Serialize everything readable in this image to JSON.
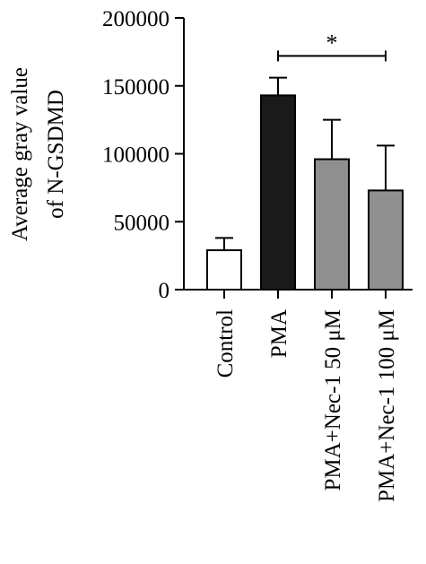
{
  "chart_data": {
    "type": "bar",
    "categories": [
      "Control",
      "PMA",
      "PMA+Nec-1 50 μM",
      "PMA+Nec-1 100 μM"
    ],
    "values": [
      29000,
      143000,
      96000,
      73000
    ],
    "errors": [
      9000,
      13000,
      29000,
      33000
    ],
    "bar_colors": [
      "#ffffff",
      "#1a1a1a",
      "#8f8f8f",
      "#8f8f8f"
    ],
    "ylabel_lines": [
      "Average gray value",
      "of N-GSDMD"
    ],
    "ylim": [
      0,
      200000
    ],
    "yticks": [
      0,
      50000,
      100000,
      150000,
      200000
    ],
    "ytick_labels": [
      "0",
      "50000",
      "100000",
      "150000",
      "200000"
    ],
    "significance": {
      "from": 1,
      "to": 3,
      "label": "*",
      "y": 172000
    },
    "grid": false
  }
}
